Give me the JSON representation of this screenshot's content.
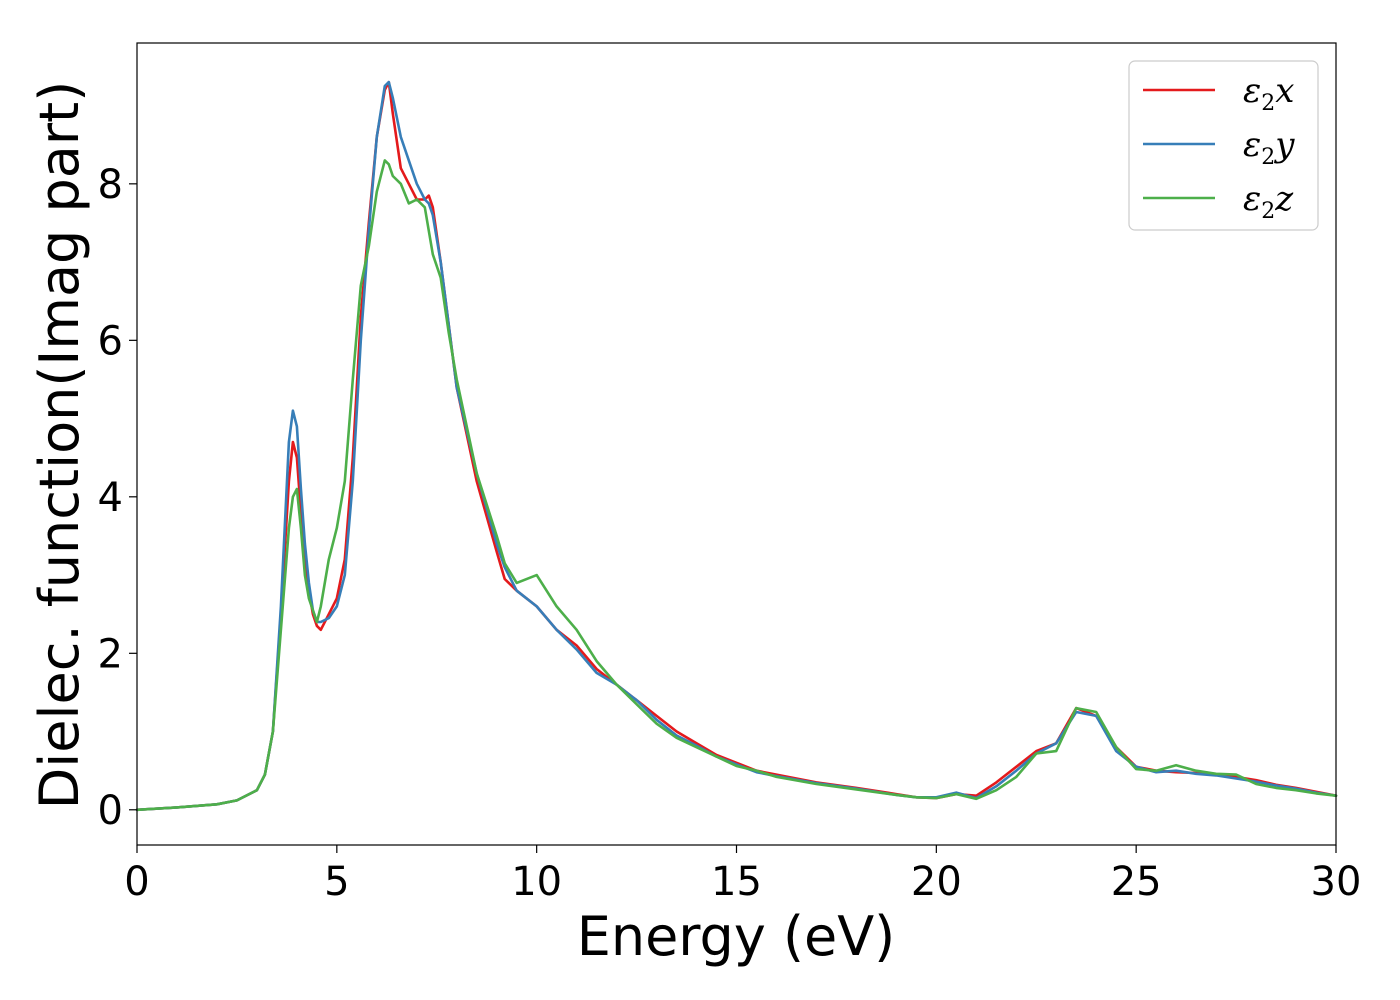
{
  "chart_data": {
    "type": "line",
    "title": "",
    "xlabel": "Energy (eV)",
    "ylabel": "Dielec. function(Imag part)",
    "xlim": [
      0,
      30
    ],
    "ylim": [
      -0.45,
      9.8
    ],
    "xticks": [
      "0",
      "5",
      "10",
      "15",
      "20",
      "25",
      "30"
    ],
    "yticks": [
      "0",
      "2",
      "4",
      "6",
      "8"
    ],
    "grid": false,
    "legend_position": "top-right",
    "series": [
      {
        "name": "ε2x",
        "legend": {
          "base": "ε",
          "sub": "2",
          "tail": "x"
        },
        "color": "#e41a1c",
        "x": [
          0,
          1,
          2,
          2.5,
          3,
          3.2,
          3.4,
          3.6,
          3.8,
          3.9,
          4.0,
          4.1,
          4.2,
          4.3,
          4.4,
          4.5,
          4.6,
          4.8,
          5.0,
          5.2,
          5.4,
          5.6,
          5.8,
          6.0,
          6.2,
          6.3,
          6.4,
          6.6,
          6.8,
          7.0,
          7.2,
          7.3,
          7.4,
          7.6,
          7.8,
          8.0,
          8.5,
          9.0,
          9.2,
          9.5,
          10.0,
          10.5,
          11.0,
          11.5,
          12.0,
          12.5,
          13.0,
          13.5,
          14.0,
          14.5,
          15.0,
          15.5,
          16.0,
          17.0,
          18.0,
          19.0,
          19.5,
          20.0,
          20.5,
          21.0,
          21.5,
          22.0,
          22.5,
          23.0,
          23.5,
          24.0,
          24.5,
          25.0,
          25.5,
          26.0,
          26.5,
          27.0,
          27.5,
          28.0,
          28.5,
          29.0,
          29.5,
          30.0
        ],
        "y": [
          0.0,
          0.03,
          0.07,
          0.12,
          0.25,
          0.45,
          1.0,
          2.5,
          4.2,
          4.7,
          4.5,
          3.8,
          3.2,
          2.8,
          2.5,
          2.35,
          2.3,
          2.5,
          2.7,
          3.2,
          4.5,
          6.3,
          7.5,
          8.6,
          9.2,
          9.3,
          8.9,
          8.2,
          8.0,
          7.8,
          7.8,
          7.85,
          7.7,
          7.0,
          6.2,
          5.4,
          4.2,
          3.3,
          2.95,
          2.8,
          2.6,
          2.3,
          2.1,
          1.8,
          1.6,
          1.4,
          1.2,
          1.0,
          0.85,
          0.7,
          0.6,
          0.5,
          0.45,
          0.35,
          0.28,
          0.2,
          0.16,
          0.15,
          0.2,
          0.18,
          0.35,
          0.55,
          0.75,
          0.85,
          1.3,
          1.2,
          0.8,
          0.55,
          0.5,
          0.48,
          0.47,
          0.45,
          0.42,
          0.38,
          0.32,
          0.28,
          0.23,
          0.18
        ]
      },
      {
        "name": "ε2y",
        "legend": {
          "base": "ε",
          "sub": "2",
          "tail": "y"
        },
        "color": "#377eb8",
        "x": [
          0,
          1,
          2,
          2.5,
          3,
          3.2,
          3.4,
          3.6,
          3.8,
          3.9,
          4.0,
          4.1,
          4.2,
          4.3,
          4.4,
          4.5,
          4.6,
          4.8,
          5.0,
          5.2,
          5.4,
          5.6,
          5.8,
          6.0,
          6.2,
          6.3,
          6.4,
          6.6,
          6.8,
          7.0,
          7.2,
          7.3,
          7.4,
          7.6,
          7.8,
          8.0,
          8.5,
          9.0,
          9.2,
          9.5,
          10.0,
          10.5,
          11.0,
          11.5,
          12.0,
          12.5,
          13.0,
          13.5,
          14.0,
          14.5,
          15.0,
          15.5,
          16.0,
          17.0,
          18.0,
          19.0,
          19.5,
          20.0,
          20.5,
          21.0,
          21.5,
          22.0,
          22.5,
          23.0,
          23.5,
          24.0,
          24.5,
          25.0,
          25.5,
          26.0,
          26.5,
          27.0,
          27.5,
          28.0,
          28.5,
          29.0,
          29.5,
          30.0
        ],
        "y": [
          0.0,
          0.03,
          0.07,
          0.12,
          0.25,
          0.45,
          1.0,
          2.6,
          4.7,
          5.1,
          4.9,
          4.1,
          3.4,
          2.9,
          2.55,
          2.4,
          2.4,
          2.45,
          2.6,
          3.0,
          4.2,
          6.0,
          7.4,
          8.6,
          9.25,
          9.3,
          9.1,
          8.6,
          8.3,
          8.0,
          7.8,
          7.75,
          7.6,
          7.0,
          6.2,
          5.4,
          4.3,
          3.4,
          3.1,
          2.8,
          2.6,
          2.3,
          2.05,
          1.75,
          1.6,
          1.4,
          1.15,
          0.95,
          0.82,
          0.68,
          0.58,
          0.48,
          0.43,
          0.34,
          0.27,
          0.19,
          0.16,
          0.16,
          0.22,
          0.15,
          0.3,
          0.5,
          0.72,
          0.85,
          1.25,
          1.2,
          0.75,
          0.55,
          0.48,
          0.5,
          0.46,
          0.44,
          0.4,
          0.36,
          0.31,
          0.27,
          0.22,
          0.18
        ]
      },
      {
        "name": "ε2z",
        "legend": {
          "base": "ε",
          "sub": "2",
          "tail": "z"
        },
        "color": "#4daf4a",
        "x": [
          0,
          1,
          2,
          2.5,
          3,
          3.2,
          3.4,
          3.6,
          3.8,
          3.9,
          4.0,
          4.1,
          4.2,
          4.3,
          4.4,
          4.5,
          4.6,
          4.8,
          5.0,
          5.2,
          5.4,
          5.6,
          5.8,
          6.0,
          6.2,
          6.3,
          6.4,
          6.6,
          6.8,
          7.0,
          7.2,
          7.3,
          7.4,
          7.6,
          7.8,
          8.0,
          8.5,
          9.0,
          9.2,
          9.5,
          10.0,
          10.5,
          11.0,
          11.5,
          12.0,
          12.5,
          13.0,
          13.5,
          14.0,
          14.5,
          15.0,
          15.5,
          16.0,
          17.0,
          18.0,
          19.0,
          19.5,
          20.0,
          20.5,
          21.0,
          21.5,
          22.0,
          22.5,
          23.0,
          23.5,
          24.0,
          24.5,
          25.0,
          25.5,
          26.0,
          26.5,
          27.0,
          27.5,
          28.0,
          28.5,
          29.0,
          29.5,
          30.0
        ],
        "y": [
          0.0,
          0.03,
          0.07,
          0.12,
          0.25,
          0.45,
          1.0,
          2.3,
          3.6,
          4.0,
          4.1,
          3.6,
          3.0,
          2.7,
          2.55,
          2.4,
          2.6,
          3.2,
          3.6,
          4.2,
          5.5,
          6.7,
          7.2,
          7.9,
          8.3,
          8.25,
          8.1,
          8.0,
          7.75,
          7.8,
          7.7,
          7.4,
          7.1,
          6.8,
          6.1,
          5.5,
          4.3,
          3.5,
          3.15,
          2.9,
          3.0,
          2.6,
          2.3,
          1.9,
          1.6,
          1.35,
          1.1,
          0.92,
          0.8,
          0.68,
          0.56,
          0.5,
          0.42,
          0.33,
          0.26,
          0.19,
          0.16,
          0.15,
          0.2,
          0.14,
          0.25,
          0.42,
          0.72,
          0.75,
          1.3,
          1.25,
          0.8,
          0.52,
          0.5,
          0.57,
          0.5,
          0.46,
          0.45,
          0.33,
          0.28,
          0.25,
          0.21,
          0.18
        ]
      }
    ]
  }
}
